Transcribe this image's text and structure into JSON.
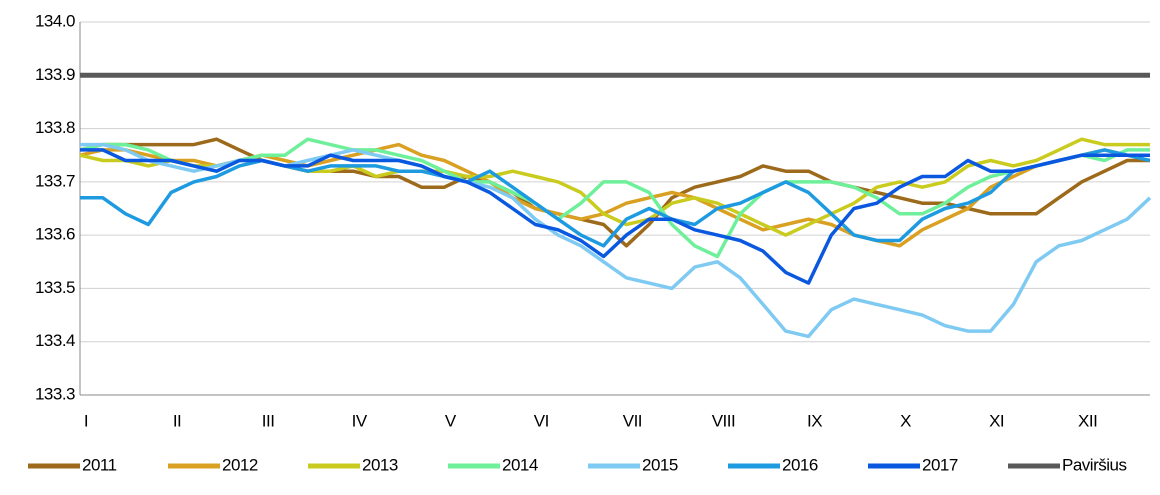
{
  "chart_data": {
    "type": "line",
    "categories": [
      "I",
      null,
      null,
      null,
      "II",
      null,
      null,
      null,
      "III",
      null,
      null,
      null,
      "IV",
      null,
      null,
      null,
      "V",
      null,
      null,
      null,
      "VI",
      null,
      null,
      null,
      "VII",
      null,
      null,
      null,
      "VIII",
      null,
      null,
      null,
      "IX",
      null,
      null,
      null,
      "X",
      null,
      null,
      null,
      "XI",
      null,
      null,
      null,
      "XII",
      null,
      null,
      null
    ],
    "series": [
      {
        "name": "2011",
        "color": "#9c6a1a",
        "values": [
          133.76,
          133.77,
          133.77,
          133.77,
          133.77,
          133.77,
          133.78,
          133.76,
          133.74,
          133.73,
          133.72,
          133.72,
          133.72,
          133.71,
          133.71,
          133.69,
          133.69,
          133.71,
          133.7,
          133.68,
          133.65,
          133.64,
          133.63,
          133.62,
          133.58,
          133.62,
          133.67,
          133.69,
          133.7,
          133.71,
          133.73,
          133.72,
          133.72,
          133.7,
          133.69,
          133.68,
          133.67,
          133.66,
          133.66,
          133.65,
          133.64,
          133.64,
          133.64,
          133.67,
          133.7,
          133.72,
          133.74,
          133.74
        ]
      },
      {
        "name": "2012",
        "color": "#d9a021",
        "values": [
          133.75,
          133.76,
          133.76,
          133.75,
          133.74,
          133.74,
          133.73,
          133.74,
          133.75,
          133.74,
          133.73,
          133.74,
          133.75,
          133.76,
          133.77,
          133.75,
          133.74,
          133.72,
          133.7,
          133.67,
          133.65,
          133.64,
          133.63,
          133.64,
          133.66,
          133.67,
          133.68,
          133.67,
          133.65,
          133.63,
          133.61,
          133.62,
          133.63,
          133.62,
          133.6,
          133.59,
          133.58,
          133.61,
          133.63,
          133.65,
          133.69,
          133.71,
          133.73,
          133.74,
          133.75,
          133.76,
          133.75,
          133.75
        ]
      },
      {
        "name": "2013",
        "color": "#c9cc1f",
        "values": [
          133.75,
          133.74,
          133.74,
          133.73,
          133.74,
          133.73,
          133.73,
          133.74,
          133.74,
          133.73,
          133.72,
          133.72,
          133.73,
          133.71,
          133.72,
          133.72,
          133.72,
          133.71,
          133.71,
          133.72,
          133.71,
          133.7,
          133.68,
          133.64,
          133.62,
          133.63,
          133.66,
          133.67,
          133.66,
          133.64,
          133.62,
          133.6,
          133.62,
          133.64,
          133.66,
          133.69,
          133.7,
          133.69,
          133.7,
          133.73,
          133.74,
          133.73,
          133.74,
          133.76,
          133.78,
          133.77,
          133.77,
          133.77
        ]
      },
      {
        "name": "2014",
        "color": "#6ef09a",
        "values": [
          133.76,
          133.77,
          133.77,
          133.76,
          133.74,
          133.73,
          133.72,
          133.74,
          133.75,
          133.75,
          133.78,
          133.77,
          133.76,
          133.76,
          133.75,
          133.74,
          133.72,
          133.7,
          133.7,
          133.68,
          133.66,
          133.63,
          133.66,
          133.7,
          133.7,
          133.68,
          133.62,
          133.58,
          133.56,
          133.64,
          133.68,
          133.7,
          133.7,
          133.7,
          133.69,
          133.67,
          133.64,
          133.64,
          133.66,
          133.69,
          133.71,
          133.72,
          133.73,
          133.74,
          133.75,
          133.74,
          133.76,
          133.76
        ]
      },
      {
        "name": "2015",
        "color": "#7fcaf2",
        "values": [
          133.77,
          133.77,
          133.76,
          133.74,
          133.73,
          133.72,
          133.73,
          133.74,
          133.74,
          133.73,
          133.74,
          133.75,
          133.76,
          133.75,
          133.74,
          133.73,
          133.71,
          133.7,
          133.69,
          133.67,
          133.63,
          133.6,
          133.58,
          133.55,
          133.52,
          133.51,
          133.5,
          133.54,
          133.55,
          133.52,
          133.47,
          133.42,
          133.41,
          133.46,
          133.48,
          133.47,
          133.46,
          133.45,
          133.43,
          133.42,
          133.42,
          133.47,
          133.55,
          133.58,
          133.59,
          133.61,
          133.63,
          133.67
        ]
      },
      {
        "name": "2016",
        "color": "#1e9be0",
        "values": [
          133.67,
          133.67,
          133.64,
          133.62,
          133.68,
          133.7,
          133.71,
          133.73,
          133.74,
          133.73,
          133.72,
          133.73,
          133.73,
          133.73,
          133.72,
          133.72,
          133.71,
          133.7,
          133.72,
          133.69,
          133.66,
          133.63,
          133.6,
          133.58,
          133.63,
          133.65,
          133.63,
          133.62,
          133.65,
          133.66,
          133.68,
          133.7,
          133.68,
          133.64,
          133.6,
          133.59,
          133.59,
          133.63,
          133.65,
          133.66,
          133.68,
          133.72,
          133.73,
          133.74,
          133.75,
          133.76,
          133.75,
          133.74
        ]
      },
      {
        "name": "2017",
        "color": "#0a58e0",
        "values": [
          133.76,
          133.76,
          133.74,
          133.74,
          133.74,
          133.73,
          133.72,
          133.74,
          133.74,
          133.73,
          133.73,
          133.75,
          133.74,
          133.74,
          133.74,
          133.73,
          133.71,
          133.7,
          133.68,
          133.65,
          133.62,
          133.61,
          133.59,
          133.56,
          133.6,
          133.63,
          133.63,
          133.61,
          133.6,
          133.59,
          133.57,
          133.53,
          133.51,
          133.6,
          133.65,
          133.66,
          133.69,
          133.71,
          133.71,
          133.74,
          133.72,
          133.72,
          133.73,
          133.74,
          133.75,
          133.75,
          133.75,
          133.75
        ]
      },
      {
        "name": "Paviršius",
        "color": "#595959",
        "values": [
          133.9,
          133.9,
          133.9,
          133.9,
          133.9,
          133.9,
          133.9,
          133.9,
          133.9,
          133.9,
          133.9,
          133.9,
          133.9,
          133.9,
          133.9,
          133.9,
          133.9,
          133.9,
          133.9,
          133.9,
          133.9,
          133.9,
          133.9,
          133.9,
          133.9,
          133.9,
          133.9,
          133.9,
          133.9,
          133.9,
          133.9,
          133.9,
          133.9,
          133.9,
          133.9,
          133.9,
          133.9,
          133.9,
          133.9,
          133.9,
          133.9,
          133.9,
          133.9,
          133.9,
          133.9,
          133.9,
          133.9,
          133.9
        ]
      }
    ],
    "ylim": [
      133.3,
      134.0
    ],
    "yticks": [
      133.3,
      133.4,
      133.5,
      133.6,
      133.7,
      133.8,
      133.9,
      {
        "value": 134.0,
        "label": "134.0"
      }
    ],
    "grid": true,
    "legend": "bottom"
  }
}
